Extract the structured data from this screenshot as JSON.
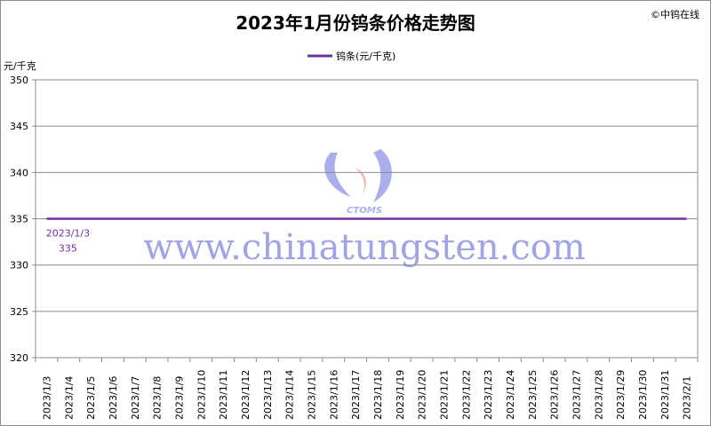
{
  "chart_data": {
    "type": "line",
    "title": "2023年1月份钨条价格走势图",
    "copyright": "©中钨在线",
    "ylabel": "元/千克",
    "xlabel": "",
    "ylim": [
      320,
      350
    ],
    "yticks": [
      320,
      325,
      330,
      335,
      340,
      345,
      350
    ],
    "grid": true,
    "legend_position": "top-center",
    "categories": [
      "2023/1/3",
      "2023/1/4",
      "2023/1/5",
      "2023/1/6",
      "2023/1/7",
      "2023/1/8",
      "2023/1/9",
      "2023/1/10",
      "2023/1/11",
      "2023/1/12",
      "2023/1/13",
      "2023/1/14",
      "2023/1/15",
      "2023/1/16",
      "2023/1/17",
      "2023/1/18",
      "2023/1/19",
      "2023/1/20",
      "2023/1/21",
      "2023/1/22",
      "2023/1/23",
      "2023/1/24",
      "2023/1/25",
      "2023/1/26",
      "2023/1/27",
      "2023/1/28",
      "2023/1/29",
      "2023/1/30",
      "2023/1/31",
      "2023/2/1"
    ],
    "series": [
      {
        "name": "钨条(元/千克)",
        "color": "#70309f",
        "values": [
          335,
          335,
          335,
          335,
          335,
          335,
          335,
          335,
          335,
          335,
          335,
          335,
          335,
          335,
          335,
          335,
          335,
          335,
          335,
          335,
          335,
          335,
          335,
          335,
          335,
          335,
          335,
          335,
          335,
          335
        ]
      }
    ],
    "annotations": [
      {
        "x": "2023/1/3",
        "label_date": "2023/1/3",
        "label_value": "335"
      }
    ],
    "watermark": {
      "logo_text": "CTOMS",
      "url_text": "www.chinatungsten.com",
      "color": "#7f86e0"
    }
  }
}
